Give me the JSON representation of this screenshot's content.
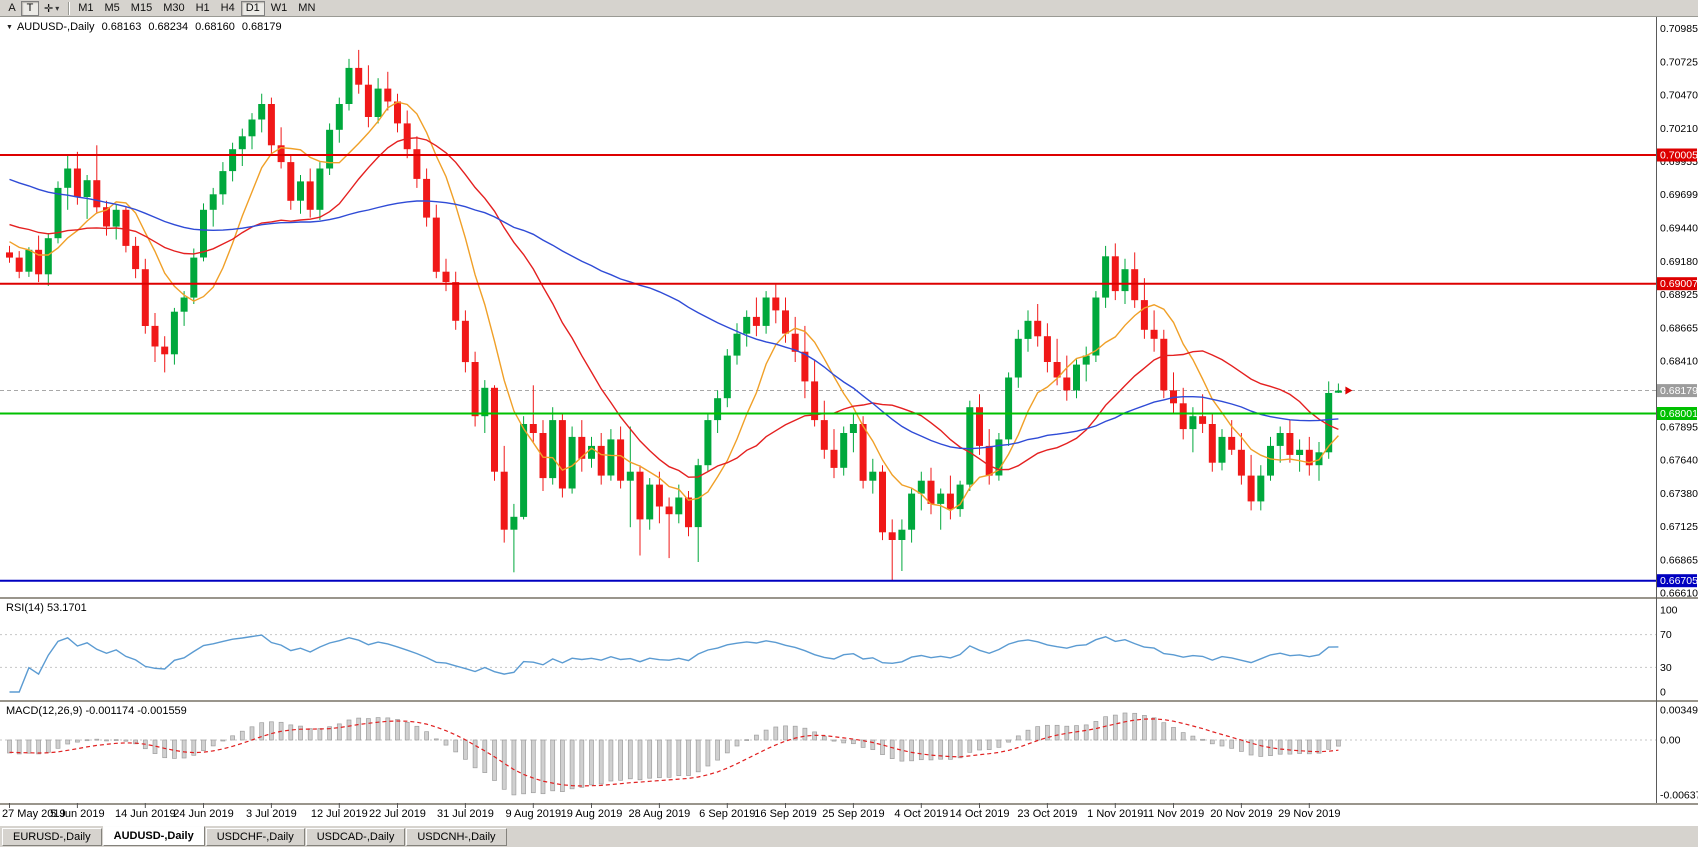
{
  "toolbar": {
    "button_a": "A",
    "button_t": "T",
    "cursor_tool": "crosshair",
    "timeframes": [
      "M1",
      "M5",
      "M15",
      "M30",
      "H1",
      "H4",
      "D1",
      "W1",
      "MN"
    ],
    "active_timeframe": "D1"
  },
  "chart": {
    "title": "AUDUSD-,Daily",
    "open": "0.68163",
    "high": "0.68234",
    "low": "0.68160",
    "close": "0.68179"
  },
  "price_axis": {
    "gridline_labels": [
      "0.70985",
      "0.70725",
      "0.70470",
      "0.70210",
      "0.69955",
      "0.69699",
      "0.69440",
      "0.69180",
      "0.68925",
      "0.68665",
      "0.68410",
      "0.67895",
      "0.67640",
      "0.67380",
      "0.67125",
      "0.66865",
      "0.66610"
    ],
    "current_price_label": "0.68179",
    "current_price": 0.68179
  },
  "hlines": [
    {
      "label": "0.70005",
      "price": 0.70005,
      "color": "#dd0000",
      "name": "resistance-line-1"
    },
    {
      "label": "0.69007",
      "price": 0.69007,
      "color": "#dd0000",
      "name": "resistance-line-2"
    },
    {
      "label": "0.68001",
      "price": 0.68001,
      "color": "#00c000",
      "name": "support-line-green"
    },
    {
      "label": "0.66705",
      "price": 0.66705,
      "color": "#0000c0",
      "name": "support-line-blue"
    }
  ],
  "indicators": {
    "rsi": {
      "label": "RSI(14) 53.1701",
      "period": 14,
      "current": 53.1701,
      "axis_labels": [
        "100",
        "70",
        "30",
        "0"
      ],
      "level_lines": [
        70,
        30
      ],
      "color": "#5b9bd2"
    },
    "macd": {
      "label": "MACD(12,26,9) -0.001174 -0.001559",
      "fast": 12,
      "slow": 26,
      "signal": 9,
      "current_main": -0.001174,
      "current_signal": -0.001559,
      "axis_labels": [
        "0.00349",
        "0.00",
        "-0.00637"
      ],
      "axis_values": [
        0.00349,
        0.0,
        -0.00637
      ],
      "histogram_color": "#d0d0d0",
      "signal_color": "#e02020"
    }
  },
  "time_axis": {
    "labels": [
      {
        "t": "27 May 2019",
        "i": 0
      },
      {
        "t": "5 Jun 2019",
        "i": 7
      },
      {
        "t": "14 Jun 2019",
        "i": 14
      },
      {
        "t": "24 Jun 2019",
        "i": 20
      },
      {
        "t": "3 Jul 2019",
        "i": 27
      },
      {
        "t": "12 Jul 2019",
        "i": 34
      },
      {
        "t": "22 Jul 2019",
        "i": 40
      },
      {
        "t": "31 Jul 2019",
        "i": 47
      },
      {
        "t": "9 Aug 2019",
        "i": 54
      },
      {
        "t": "19 Aug 2019",
        "i": 60
      },
      {
        "t": "28 Aug 2019",
        "i": 67
      },
      {
        "t": "6 Sep 2019",
        "i": 74
      },
      {
        "t": "16 Sep 2019",
        "i": 80
      },
      {
        "t": "25 Sep 2019",
        "i": 87
      },
      {
        "t": "4 Oct 2019",
        "i": 94
      },
      {
        "t": "14 Oct 2019",
        "i": 100
      },
      {
        "t": "23 Oct 2019",
        "i": 107
      },
      {
        "t": "1 Nov 2019",
        "i": 114
      },
      {
        "t": "11 Nov 2019",
        "i": 120
      },
      {
        "t": "20 Nov 2019",
        "i": 127
      },
      {
        "t": "29 Nov 2019",
        "i": 134
      }
    ]
  },
  "tabs": {
    "items": [
      {
        "label": "EURUSD-,Daily",
        "active": false
      },
      {
        "label": "AUDUSD-,Daily",
        "active": true
      },
      {
        "label": "USDCHF-,Daily",
        "active": false
      },
      {
        "label": "USDCAD-,Daily",
        "active": false
      },
      {
        "label": "USDCNH-,Daily",
        "active": false
      }
    ]
  },
  "chart_data": {
    "type": "candlestick",
    "symbol": "AUDUSD",
    "timeframe": "Daily",
    "up_color": "#00a83c",
    "down_color": "#f01818",
    "ma": [
      {
        "period": 8,
        "color": "#f0a028"
      },
      {
        "period": 21,
        "color": "#e42020"
      },
      {
        "period": 50,
        "color": "#2f4bd6"
      }
    ],
    "warmup": {
      "count": 50,
      "start": 0.7045,
      "end": 0.6918,
      "wiggle": 0.0012
    },
    "ohlc": [
      [
        0.6925,
        0.693,
        0.6917,
        0.6921
      ],
      [
        0.6921,
        0.6926,
        0.6905,
        0.691
      ],
      [
        0.691,
        0.6929,
        0.6906,
        0.6927
      ],
      [
        0.6927,
        0.6938,
        0.6902,
        0.6908
      ],
      [
        0.6908,
        0.694,
        0.6899,
        0.6936
      ],
      [
        0.6936,
        0.698,
        0.6932,
        0.6975
      ],
      [
        0.6975,
        0.7,
        0.6958,
        0.699
      ],
      [
        0.699,
        0.7003,
        0.6962,
        0.6968
      ],
      [
        0.6968,
        0.6985,
        0.6951,
        0.6981
      ],
      [
        0.6981,
        0.7008,
        0.6955,
        0.696
      ],
      [
        0.696,
        0.6965,
        0.6938,
        0.6945
      ],
      [
        0.6945,
        0.6962,
        0.6935,
        0.6958
      ],
      [
        0.6958,
        0.696,
        0.6925,
        0.693
      ],
      [
        0.693,
        0.6937,
        0.6905,
        0.6912
      ],
      [
        0.6912,
        0.692,
        0.6862,
        0.6868
      ],
      [
        0.6868,
        0.6878,
        0.684,
        0.6852
      ],
      [
        0.6852,
        0.686,
        0.6832,
        0.6846
      ],
      [
        0.6846,
        0.6882,
        0.6838,
        0.6879
      ],
      [
        0.6879,
        0.6895,
        0.6868,
        0.689
      ],
      [
        0.689,
        0.6928,
        0.6885,
        0.6921
      ],
      [
        0.6921,
        0.6963,
        0.6918,
        0.6958
      ],
      [
        0.6958,
        0.6975,
        0.6945,
        0.697
      ],
      [
        0.697,
        0.6995,
        0.6962,
        0.6988
      ],
      [
        0.6988,
        0.701,
        0.698,
        0.7005
      ],
      [
        0.7005,
        0.7021,
        0.6992,
        0.7015
      ],
      [
        0.7015,
        0.7033,
        0.7005,
        0.7028
      ],
      [
        0.7028,
        0.7048,
        0.7018,
        0.704
      ],
      [
        0.704,
        0.7045,
        0.7,
        0.7008
      ],
      [
        0.7008,
        0.7022,
        0.699,
        0.6995
      ],
      [
        0.6995,
        0.7,
        0.6958,
        0.6965
      ],
      [
        0.6965,
        0.6985,
        0.6955,
        0.698
      ],
      [
        0.698,
        0.699,
        0.6952,
        0.6958
      ],
      [
        0.6958,
        0.6995,
        0.695,
        0.699
      ],
      [
        0.699,
        0.7025,
        0.6985,
        0.702
      ],
      [
        0.702,
        0.7045,
        0.701,
        0.704
      ],
      [
        0.704,
        0.7075,
        0.7035,
        0.7068
      ],
      [
        0.7068,
        0.7082,
        0.7048,
        0.7055
      ],
      [
        0.7055,
        0.707,
        0.7022,
        0.703
      ],
      [
        0.703,
        0.706,
        0.7025,
        0.7052
      ],
      [
        0.7052,
        0.7065,
        0.7035,
        0.7042
      ],
      [
        0.7042,
        0.7048,
        0.7018,
        0.7025
      ],
      [
        0.7025,
        0.7035,
        0.6998,
        0.7005
      ],
      [
        0.7005,
        0.7015,
        0.6975,
        0.6982
      ],
      [
        0.6982,
        0.699,
        0.6945,
        0.6952
      ],
      [
        0.6952,
        0.6962,
        0.6905,
        0.691
      ],
      [
        0.691,
        0.692,
        0.6895,
        0.6902
      ],
      [
        0.6902,
        0.691,
        0.6865,
        0.6872
      ],
      [
        0.6872,
        0.688,
        0.6832,
        0.684
      ],
      [
        0.684,
        0.6848,
        0.679,
        0.6798
      ],
      [
        0.6798,
        0.6826,
        0.6785,
        0.682
      ],
      [
        0.682,
        0.6822,
        0.6748,
        0.6755
      ],
      [
        0.6755,
        0.6775,
        0.67,
        0.671
      ],
      [
        0.671,
        0.673,
        0.6677,
        0.672
      ],
      [
        0.672,
        0.6798,
        0.6718,
        0.6792
      ],
      [
        0.6792,
        0.6822,
        0.6778,
        0.6785
      ],
      [
        0.6785,
        0.6795,
        0.674,
        0.675
      ],
      [
        0.675,
        0.6805,
        0.6745,
        0.6795
      ],
      [
        0.6795,
        0.68,
        0.6735,
        0.6742
      ],
      [
        0.6742,
        0.679,
        0.6738,
        0.6782
      ],
      [
        0.6782,
        0.6795,
        0.6755,
        0.6765
      ],
      [
        0.6765,
        0.6782,
        0.6758,
        0.6775
      ],
      [
        0.6775,
        0.6785,
        0.6745,
        0.6752
      ],
      [
        0.6752,
        0.6788,
        0.6748,
        0.678
      ],
      [
        0.678,
        0.679,
        0.6742,
        0.6748
      ],
      [
        0.6748,
        0.679,
        0.6712,
        0.6755
      ],
      [
        0.6755,
        0.676,
        0.669,
        0.6718
      ],
      [
        0.6718,
        0.675,
        0.671,
        0.6745
      ],
      [
        0.6745,
        0.6755,
        0.6715,
        0.6728
      ],
      [
        0.6728,
        0.6735,
        0.6688,
        0.6722
      ],
      [
        0.6722,
        0.6745,
        0.6715,
        0.6735
      ],
      [
        0.6735,
        0.674,
        0.6705,
        0.6712
      ],
      [
        0.6712,
        0.6765,
        0.6685,
        0.676
      ],
      [
        0.676,
        0.68,
        0.6755,
        0.6795
      ],
      [
        0.6795,
        0.6818,
        0.6785,
        0.6812
      ],
      [
        0.6812,
        0.685,
        0.6805,
        0.6845
      ],
      [
        0.6845,
        0.687,
        0.6838,
        0.6862
      ],
      [
        0.6862,
        0.688,
        0.6852,
        0.6875
      ],
      [
        0.6875,
        0.689,
        0.686,
        0.6868
      ],
      [
        0.6868,
        0.6895,
        0.6862,
        0.689
      ],
      [
        0.689,
        0.69,
        0.687,
        0.688
      ],
      [
        0.688,
        0.689,
        0.6855,
        0.6862
      ],
      [
        0.6862,
        0.6875,
        0.684,
        0.6848
      ],
      [
        0.6848,
        0.6868,
        0.6812,
        0.6825
      ],
      [
        0.6825,
        0.6842,
        0.679,
        0.6795
      ],
      [
        0.6795,
        0.681,
        0.6765,
        0.6772
      ],
      [
        0.6772,
        0.6788,
        0.675,
        0.6758
      ],
      [
        0.6758,
        0.679,
        0.6752,
        0.6785
      ],
      [
        0.6785,
        0.68,
        0.677,
        0.6792
      ],
      [
        0.6792,
        0.6798,
        0.6742,
        0.6748
      ],
      [
        0.6748,
        0.6765,
        0.6738,
        0.6755
      ],
      [
        0.6755,
        0.676,
        0.6702,
        0.6708
      ],
      [
        0.6708,
        0.6718,
        0.667,
        0.6702
      ],
      [
        0.6702,
        0.6718,
        0.6678,
        0.671
      ],
      [
        0.671,
        0.6742,
        0.67,
        0.6738
      ],
      [
        0.6738,
        0.6755,
        0.6725,
        0.6748
      ],
      [
        0.6748,
        0.6758,
        0.6722,
        0.673
      ],
      [
        0.673,
        0.6742,
        0.671,
        0.6738
      ],
      [
        0.6738,
        0.6752,
        0.6718,
        0.6726
      ],
      [
        0.6726,
        0.6748,
        0.672,
        0.6745
      ],
      [
        0.6745,
        0.681,
        0.674,
        0.6805
      ],
      [
        0.6805,
        0.6815,
        0.6768,
        0.6775
      ],
      [
        0.6775,
        0.6788,
        0.6745,
        0.6752
      ],
      [
        0.6752,
        0.6785,
        0.6748,
        0.678
      ],
      [
        0.678,
        0.6832,
        0.6775,
        0.6828
      ],
      [
        0.6828,
        0.6865,
        0.682,
        0.6858
      ],
      [
        0.6858,
        0.688,
        0.6848,
        0.6872
      ],
      [
        0.6872,
        0.6885,
        0.6852,
        0.686
      ],
      [
        0.686,
        0.687,
        0.6832,
        0.684
      ],
      [
        0.684,
        0.6858,
        0.6822,
        0.6828
      ],
      [
        0.6828,
        0.6845,
        0.681,
        0.6818
      ],
      [
        0.6818,
        0.6842,
        0.6812,
        0.6838
      ],
      [
        0.6838,
        0.6852,
        0.6825,
        0.6845
      ],
      [
        0.6845,
        0.6895,
        0.684,
        0.689
      ],
      [
        0.689,
        0.693,
        0.6882,
        0.6922
      ],
      [
        0.6922,
        0.6932,
        0.6888,
        0.6895
      ],
      [
        0.6895,
        0.692,
        0.6885,
        0.6912
      ],
      [
        0.6912,
        0.6925,
        0.6882,
        0.6888
      ],
      [
        0.6888,
        0.6905,
        0.6858,
        0.6865
      ],
      [
        0.6865,
        0.688,
        0.6848,
        0.6858
      ],
      [
        0.6858,
        0.6865,
        0.6812,
        0.6818
      ],
      [
        0.6818,
        0.6832,
        0.68,
        0.6808
      ],
      [
        0.6808,
        0.682,
        0.678,
        0.6788
      ],
      [
        0.6788,
        0.6805,
        0.677,
        0.6798
      ],
      [
        0.6798,
        0.6815,
        0.6785,
        0.6792
      ],
      [
        0.6792,
        0.68,
        0.6755,
        0.6762
      ],
      [
        0.6762,
        0.6788,
        0.6756,
        0.6782
      ],
      [
        0.6782,
        0.6795,
        0.6768,
        0.6772
      ],
      [
        0.6772,
        0.6785,
        0.6745,
        0.6752
      ],
      [
        0.6752,
        0.6768,
        0.6725,
        0.6732
      ],
      [
        0.6732,
        0.676,
        0.6725,
        0.6752
      ],
      [
        0.6752,
        0.6782,
        0.6748,
        0.6775
      ],
      [
        0.6775,
        0.679,
        0.6762,
        0.6785
      ],
      [
        0.6785,
        0.6795,
        0.6762,
        0.6768
      ],
      [
        0.6768,
        0.678,
        0.6755,
        0.6772
      ],
      [
        0.6772,
        0.6782,
        0.6752,
        0.676
      ],
      [
        0.676,
        0.6778,
        0.6748,
        0.677
      ],
      [
        0.677,
        0.6825,
        0.6765,
        0.6816
      ],
      [
        0.68163,
        0.68234,
        0.6816,
        0.68179
      ]
    ]
  }
}
